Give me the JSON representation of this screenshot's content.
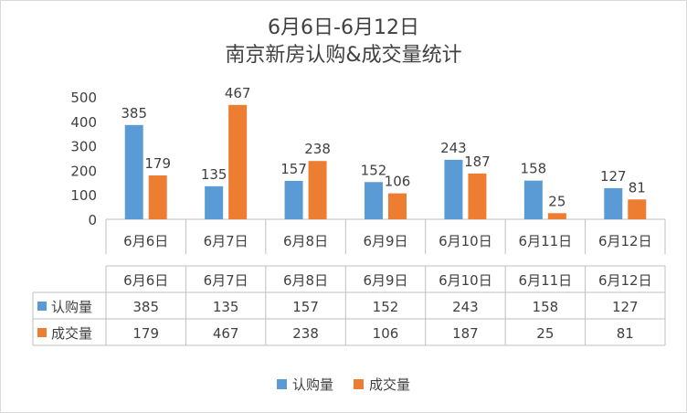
{
  "chart_data": {
    "type": "bar",
    "title_line1": "6月6日-6月12日",
    "title_line2": "南京新房认购&成交量统计",
    "categories": [
      "6月6日",
      "6月7日",
      "6月8日",
      "6月9日",
      "6月10日",
      "6月11日",
      "6月12日"
    ],
    "series": [
      {
        "name": "认购量",
        "color": "#5b9bd5",
        "values": [
          385,
          135,
          157,
          152,
          243,
          158,
          127
        ]
      },
      {
        "name": "成交量",
        "color": "#ed7d31",
        "values": [
          179,
          467,
          238,
          106,
          187,
          25,
          81
        ]
      }
    ],
    "yticks": [
      0,
      100,
      200,
      300,
      400,
      500
    ],
    "ylim": [
      0,
      500
    ],
    "legend_position": "bottom",
    "data_table": true
  }
}
